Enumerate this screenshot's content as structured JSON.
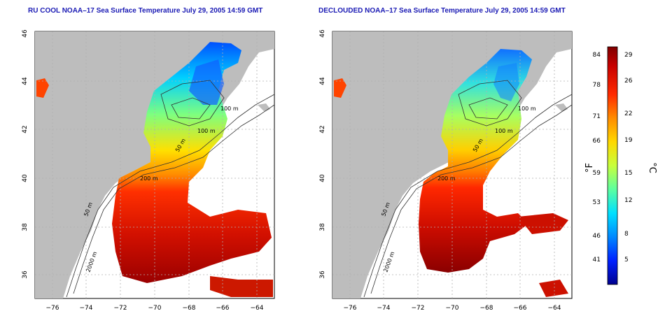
{
  "maps": [
    {
      "title": "RU COOL NOAA–17 Sea Surface Temperature July 29, 2005 14:59 GMT",
      "depth_labels": [
        "100 m",
        "100 m",
        "50 m",
        "200 m",
        "50 m",
        "2000 m"
      ]
    },
    {
      "title": "DECLOUDED NOAA–17 Sea Surface Temperature July 29, 2005 14:59 GMT",
      "depth_labels": [
        "100 m",
        "100 m",
        "50 m",
        "200 m",
        "50 m",
        "2000 m"
      ]
    }
  ],
  "lon_ticks": [
    "−76",
    "−74",
    "−72",
    "−70",
    "−68",
    "−66",
    "−64"
  ],
  "lat_ticks": [
    "46",
    "44",
    "42",
    "40",
    "38",
    "36"
  ],
  "colorbar": {
    "fahrenheit_ticks": [
      "84",
      "78",
      "71",
      "66",
      "59",
      "53",
      "46",
      "41"
    ],
    "celsius_ticks": [
      "29",
      "26",
      "22",
      "19",
      "15",
      "12",
      "8",
      "5"
    ],
    "fahrenheit_label": "°F",
    "celsius_label": "°C",
    "colors": [
      "#7f0000",
      "#c80000",
      "#ff2a00",
      "#ff8c00",
      "#ffd800",
      "#c8ff3c",
      "#5cffa0",
      "#00e0ff",
      "#0088ff",
      "#0020ff",
      "#00008f"
    ]
  },
  "colors": {
    "land": "#bdbdbd",
    "ocean": "#ffffff",
    "title": "#1a1ab4",
    "grid": "#b0b0b0",
    "contour": "#333333"
  }
}
